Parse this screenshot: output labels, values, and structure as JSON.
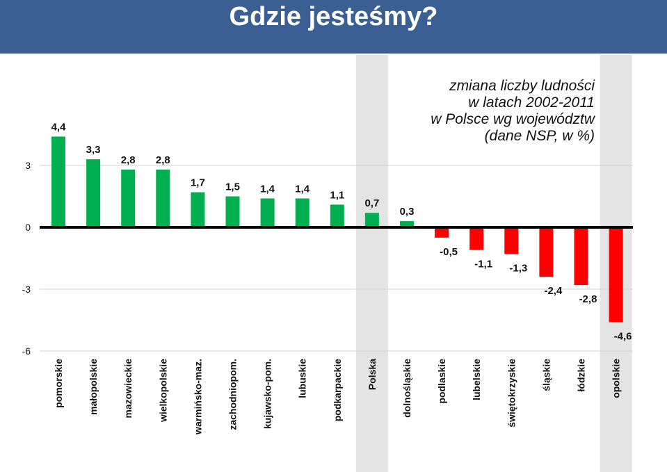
{
  "page": {
    "title": "Gdzie jesteśmy?"
  },
  "chart_data": {
    "type": "bar",
    "title_lines": [
      "zmiana liczby ludności",
      "w latach 2002-2011",
      "w Polsce wg województw",
      "(dane NSP, w %)"
    ],
    "categories": [
      "pomorskie",
      "małopolskie",
      "mazowieckie",
      "wielkopolskie",
      "warmińsko-maz.",
      "zachodniopom.",
      "kujawsko-pom.",
      "lubuskie",
      "podkarpackie",
      "Polska",
      "dolnośląskie",
      "podlaskie",
      "lubelskie",
      "świętokrzyskie",
      "śląskie",
      "łódzkie",
      "opolskie"
    ],
    "values": [
      4.4,
      3.3,
      2.8,
      2.8,
      1.7,
      1.5,
      1.4,
      1.4,
      1.1,
      0.7,
      0.3,
      -0.5,
      -1.1,
      -1.3,
      -2.4,
      -2.8,
      -4.6
    ],
    "value_labels": [
      "4,4",
      "3,3",
      "2,8",
      "2,8",
      "1,7",
      "1,5",
      "1,4",
      "1,4",
      "1,1",
      "0,7",
      "0,3",
      "-0,5",
      "-1,1",
      "-1,3",
      "-2,4",
      "-2,8",
      "-4,6"
    ],
    "highlighted_categories": [
      "Polska",
      "opolskie"
    ],
    "ylim": [
      -6,
      5
    ],
    "yticks": [
      3,
      0,
      -3,
      -6
    ],
    "ytick_labels": [
      "3",
      "0",
      "-3",
      "-6"
    ],
    "grid": true,
    "colors": {
      "positive": "#00b050",
      "negative": "#ff0000",
      "highlight_band": "#e4e4e4",
      "gridline": "#d0d0d0",
      "title_bar": "#3b5f93"
    }
  }
}
